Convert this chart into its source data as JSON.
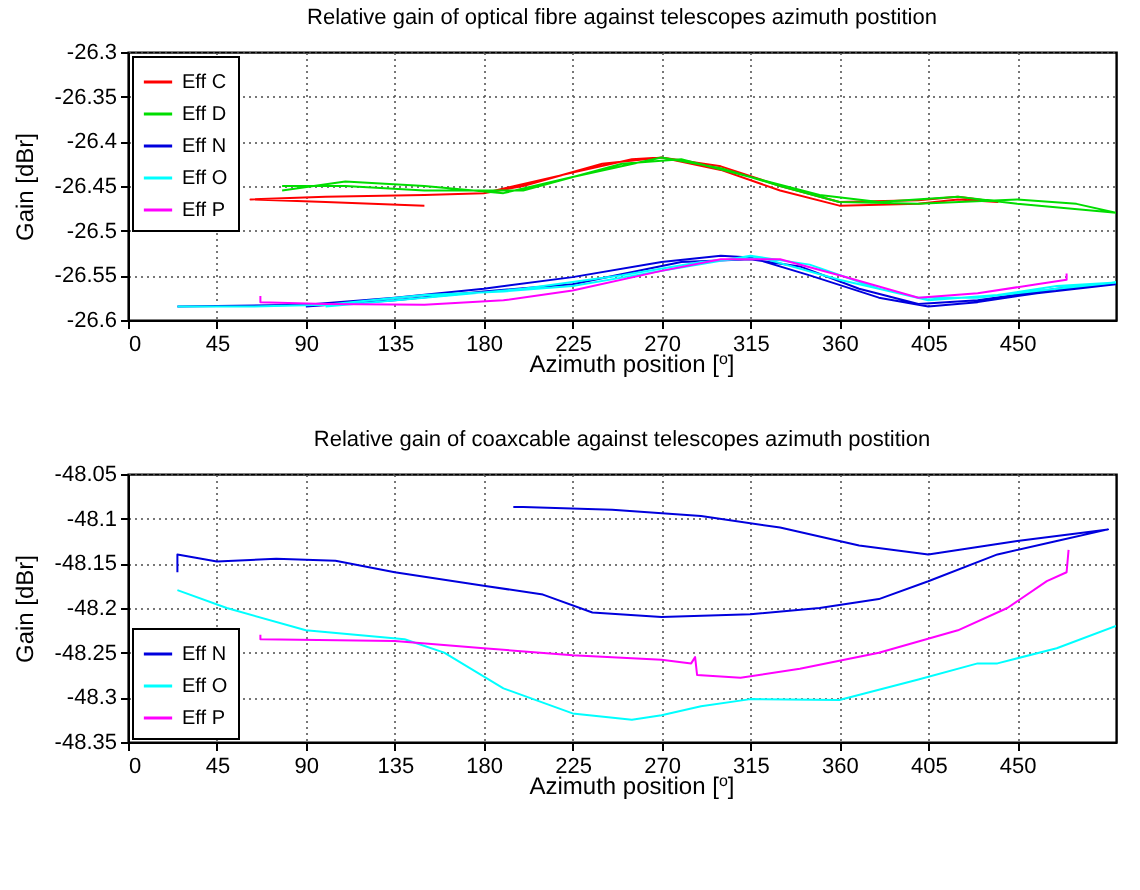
{
  "chart_data": [
    {
      "type": "line",
      "title": "Relative gain of optical fibre against telescopes azimuth postition",
      "xlabel": "Azimuth position [$^{o}$]",
      "ylabel": "Gain [dBr]",
      "xlim": [
        0,
        500
      ],
      "xticks": [
        0,
        45,
        90,
        135,
        180,
        225,
        270,
        315,
        360,
        405,
        450
      ],
      "ylim": [
        -26.6,
        -26.3
      ],
      "yticks": [
        -26.6,
        -26.55,
        -26.5,
        -26.45,
        -26.4,
        -26.35,
        -26.3
      ],
      "grid": true,
      "legend": "top left",
      "series": [
        {
          "name": "Eff C",
          "color": "#ff0000",
          "x": [
            150,
            100,
            62,
            100,
            150,
            180,
            225,
            255,
            270,
            300,
            330,
            360,
            400,
            420,
            440,
            420,
            400,
            360,
            330,
            300,
            270,
            240,
            200,
            180
          ],
          "values": [
            -26.472,
            -26.468,
            -26.465,
            -26.462,
            -26.46,
            -26.458,
            -26.435,
            -26.42,
            -26.418,
            -26.432,
            -26.455,
            -26.472,
            -26.47,
            -26.465,
            -26.468,
            -26.462,
            -26.466,
            -26.468,
            -26.45,
            -26.428,
            -26.418,
            -26.425,
            -26.45,
            -26.458
          ]
        },
        {
          "name": "Eff D",
          "color": "#00dd00",
          "x": [
            78,
            110,
            150,
            190,
            225,
            270,
            300,
            330,
            360,
            400,
            450,
            480,
            500,
            450,
            420,
            380,
            350,
            315,
            280,
            250,
            200,
            150,
            110,
            78
          ],
          "values": [
            -26.455,
            -26.445,
            -26.45,
            -26.458,
            -26.44,
            -26.418,
            -26.43,
            -26.45,
            -26.468,
            -26.47,
            -26.465,
            -26.47,
            -26.48,
            -26.47,
            -26.462,
            -26.468,
            -26.46,
            -26.44,
            -26.42,
            -26.425,
            -26.455,
            -26.455,
            -26.45,
            -26.45
          ]
        },
        {
          "name": "Eff N",
          "color": "#0000dd",
          "x": [
            25,
            90,
            135,
            180,
            225,
            270,
            300,
            315,
            345,
            380,
            405,
            430,
            460,
            500,
            470,
            430,
            400,
            370,
            340,
            315,
            280,
            225,
            180,
            135,
            90
          ],
          "values": [
            -26.585,
            -26.583,
            -26.575,
            -26.565,
            -26.552,
            -26.535,
            -26.528,
            -26.53,
            -26.55,
            -26.575,
            -26.585,
            -26.58,
            -26.57,
            -26.56,
            -26.565,
            -26.578,
            -26.582,
            -26.565,
            -26.54,
            -26.532,
            -26.535,
            -26.56,
            -26.568,
            -26.578,
            -26.585
          ]
        },
        {
          "name": "Eff O",
          "color": "#00ffff",
          "x": [
            25,
            60,
            100,
            150,
            190,
            225,
            270,
            315,
            345,
            380,
            405,
            440,
            470,
            500,
            470,
            430,
            400,
            360,
            320,
            290,
            250,
            200,
            150,
            100
          ],
          "values": [
            -26.585,
            -26.585,
            -26.583,
            -26.572,
            -26.568,
            -26.562,
            -26.545,
            -26.528,
            -26.538,
            -26.565,
            -26.578,
            -26.572,
            -26.562,
            -26.558,
            -26.565,
            -26.575,
            -26.575,
            -26.555,
            -26.53,
            -26.535,
            -26.55,
            -26.565,
            -26.575,
            -26.585
          ]
        },
        {
          "name": "Eff P",
          "color": "#ff00ff",
          "x": [
            67,
            67,
            100,
            150,
            190,
            225,
            270,
            300,
            330,
            360,
            400,
            430,
            460,
            475,
            475
          ],
          "values": [
            -26.573,
            -26.58,
            -26.582,
            -26.583,
            -26.578,
            -26.567,
            -26.545,
            -26.532,
            -26.532,
            -26.55,
            -26.575,
            -26.57,
            -26.56,
            -26.555,
            -26.548
          ]
        }
      ]
    },
    {
      "type": "line",
      "title": "Relative gain of coaxcable against telescopes azimuth postition",
      "xlabel": "Azimuth position [$^{o}$]",
      "ylabel": "Gain [dBr]",
      "xlim": [
        0,
        500
      ],
      "xticks": [
        0,
        45,
        90,
        135,
        180,
        225,
        270,
        315,
        360,
        405,
        450
      ],
      "ylim": [
        -48.35,
        -48.05
      ],
      "yticks": [
        -48.35,
        -48.3,
        -48.25,
        -48.2,
        -48.15,
        -48.1,
        -48.05
      ],
      "grid": true,
      "legend": "bottom left",
      "series": [
        {
          "name": "Eff N",
          "color": "#0000dd",
          "x": [
            25,
            25,
            45,
            75,
            105,
            135,
            180,
            210,
            235,
            270,
            315,
            350,
            380,
            405,
            440,
            470,
            496,
            450,
            405,
            370,
            330,
            290,
            245,
            200,
            195
          ],
          "values": [
            -48.16,
            -48.14,
            -48.148,
            -48.145,
            -48.147,
            -48.16,
            -48.175,
            -48.185,
            -48.205,
            -48.21,
            -48.207,
            -48.2,
            -48.19,
            -48.17,
            -48.14,
            -48.125,
            -48.112,
            -48.125,
            -48.14,
            -48.13,
            -48.11,
            -48.097,
            -48.09,
            -48.087,
            -48.087
          ]
        },
        {
          "name": "Eff O",
          "color": "#00ffff",
          "x": [
            25,
            50,
            90,
            140,
            160,
            190,
            225,
            255,
            270,
            290,
            315,
            360,
            400,
            430,
            440,
            470,
            500
          ],
          "values": [
            -48.18,
            -48.2,
            -48.225,
            -48.235,
            -48.25,
            -48.29,
            -48.318,
            -48.325,
            -48.32,
            -48.31,
            -48.302,
            -48.303,
            -48.28,
            -48.262,
            -48.262,
            -48.245,
            -48.22
          ]
        },
        {
          "name": "Eff P",
          "color": "#ff00ff",
          "x": [
            67,
            67,
            135,
            180,
            225,
            270,
            285,
            287,
            288,
            310,
            340,
            380,
            420,
            445,
            465,
            475,
            476
          ],
          "values": [
            -48.23,
            -48.235,
            -48.237,
            -48.245,
            -48.253,
            -48.258,
            -48.262,
            -48.255,
            -48.275,
            -48.278,
            -48.268,
            -48.25,
            -48.225,
            -48.2,
            -48.17,
            -48.16,
            -48.135
          ]
        }
      ]
    }
  ]
}
